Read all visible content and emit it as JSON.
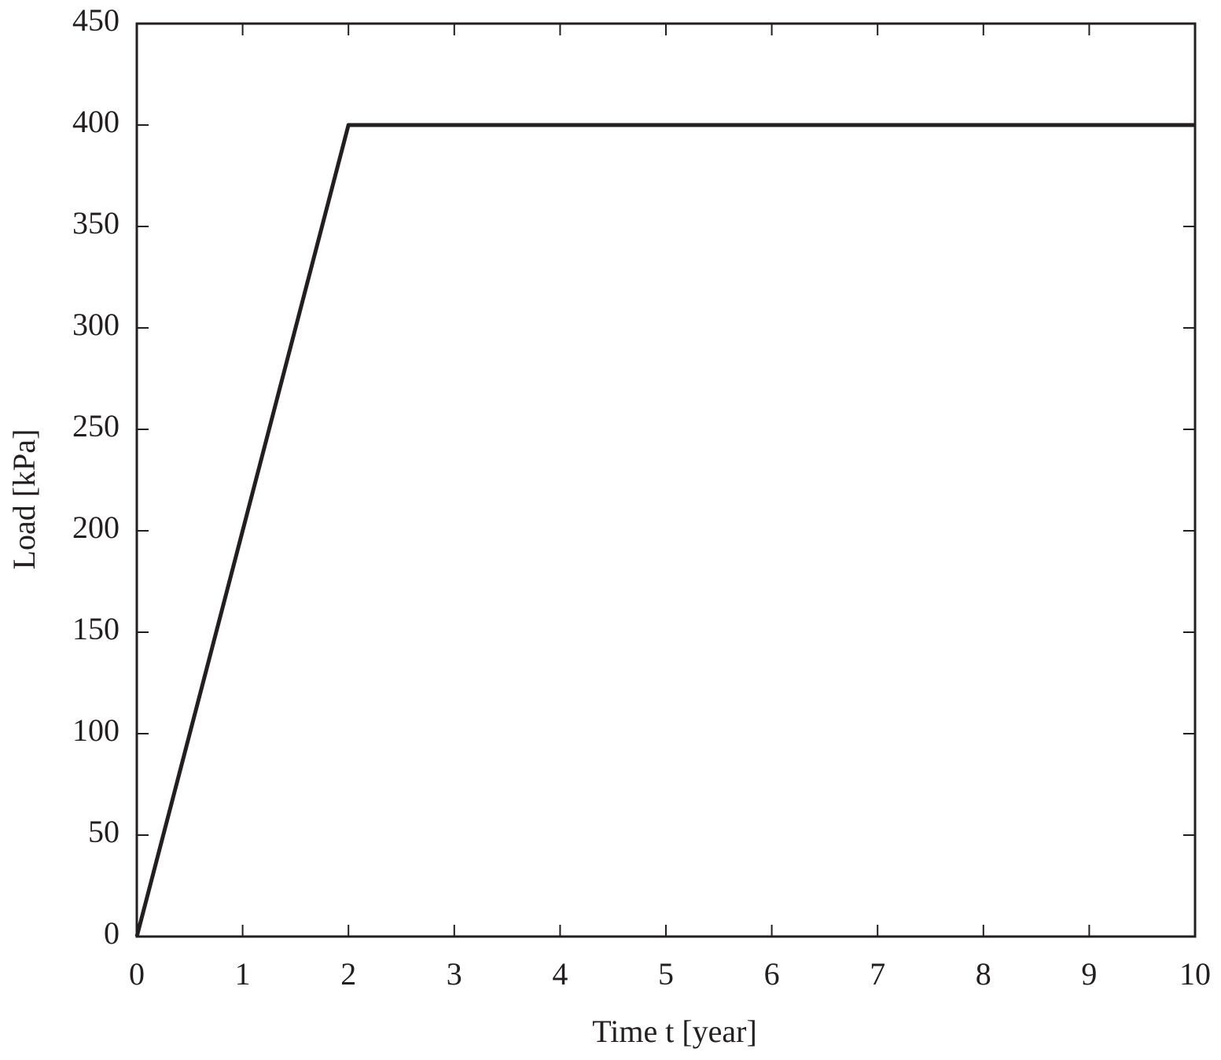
{
  "chart_data": {
    "type": "line",
    "xlabel": "Time t [year]",
    "ylabel": "Load [kPa]",
    "x": [
      0,
      2,
      10
    ],
    "values": [
      0,
      400,
      400
    ],
    "color": "#231f20",
    "xlim": [
      0,
      10
    ],
    "xticks": [
      0,
      1,
      2,
      3,
      4,
      5,
      6,
      7,
      8,
      9,
      10
    ],
    "ylim": [
      0,
      450
    ],
    "yticks": [
      0,
      50,
      100,
      150,
      200,
      250,
      300,
      350,
      400,
      450
    ],
    "grid": false
  }
}
